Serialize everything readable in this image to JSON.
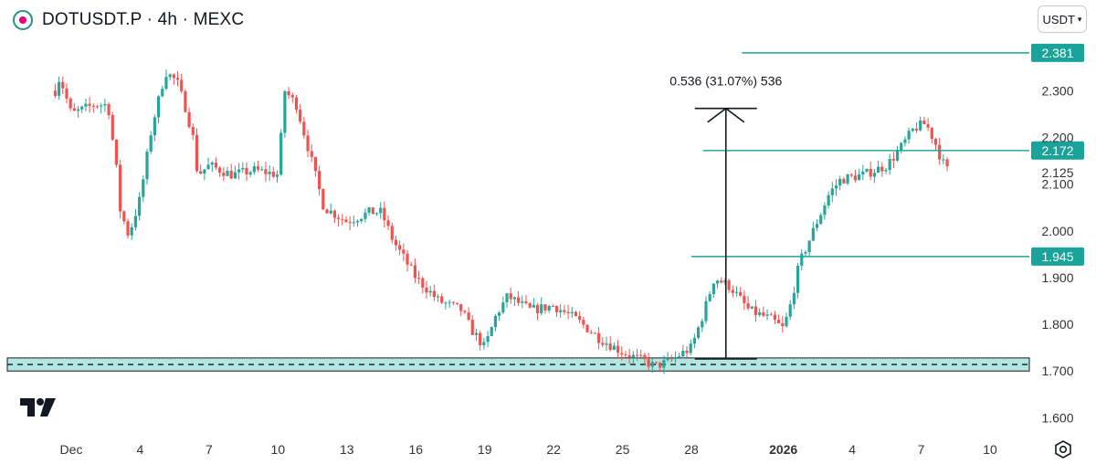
{
  "header": {
    "symbol_title": "DOTUSDT.P · 4h · MEXC",
    "currency_button": "USDT",
    "logo_icon": "polkadot-icon"
  },
  "colors": {
    "up": "#26a69a",
    "down": "#ef5350",
    "level": "#1aa39a",
    "zone": "#b2e6df",
    "text": "#131722",
    "axis_text": "#333333"
  },
  "measure": {
    "label": "0.536 (31.07%) 536"
  },
  "chart_data": {
    "type": "candlestick",
    "symbol": "DOTUSDT.P",
    "interval": "4h",
    "exchange": "MEXC",
    "ylim": [
      1.58,
      2.43
    ],
    "y_ticks": [
      "1.600",
      "1.700",
      "1.800",
      "1.900",
      "2.000",
      "2.100",
      "2.200",
      "2.300"
    ],
    "x_ticks": [
      {
        "label": "Dec",
        "day": 0
      },
      {
        "label": "4",
        "day": 3
      },
      {
        "label": "7",
        "day": 6
      },
      {
        "label": "10",
        "day": 9
      },
      {
        "label": "13",
        "day": 12
      },
      {
        "label": "16",
        "day": 15
      },
      {
        "label": "19",
        "day": 18
      },
      {
        "label": "22",
        "day": 21
      },
      {
        "label": "25",
        "day": 24
      },
      {
        "label": "28",
        "day": 27
      },
      {
        "label": "2026",
        "day": 31,
        "bold": true
      },
      {
        "label": "4",
        "day": 34
      },
      {
        "label": "7",
        "day": 37
      },
      {
        "label": "10",
        "day": 40
      }
    ],
    "price_levels": [
      {
        "value": 2.381,
        "label": "2.381",
        "from_day": 29.2
      },
      {
        "value": 2.172,
        "label": "2.172",
        "from_day": 27.5
      },
      {
        "value": 1.945,
        "label": "1.945",
        "from_day": 27.0
      }
    ],
    "current_price": {
      "value": 2.125,
      "label": "2.125"
    },
    "support_zone": {
      "top": 1.728,
      "bottom": 1.7,
      "mid": 1.714
    },
    "measure": {
      "from_day": 28.5,
      "from_price": 1.726,
      "to_price": 2.262,
      "change": 0.536,
      "percent": 31.07,
      "ticks": 536
    },
    "anchors": [
      [
        -0.7,
        2.3
      ],
      [
        -0.5,
        2.33
      ],
      [
        0.0,
        2.25
      ],
      [
        1.0,
        2.27
      ],
      [
        1.6,
        2.27
      ],
      [
        2.0,
        2.12
      ],
      [
        2.1,
        2.05
      ],
      [
        2.5,
        1.99
      ],
      [
        3.0,
        2.07
      ],
      [
        3.5,
        2.22
      ],
      [
        4.1,
        2.34
      ],
      [
        4.6,
        2.32
      ],
      [
        5.0,
        2.26
      ],
      [
        5.3,
        2.2
      ],
      [
        5.5,
        2.12
      ],
      [
        6.0,
        2.14
      ],
      [
        7.0,
        2.12
      ],
      [
        8.0,
        2.13
      ],
      [
        9.0,
        2.12
      ],
      [
        9.3,
        2.3
      ],
      [
        9.8,
        2.27
      ],
      [
        10.3,
        2.18
      ],
      [
        11.0,
        2.05
      ],
      [
        12.0,
        2.02
      ],
      [
        13.0,
        2.04
      ],
      [
        13.5,
        2.04
      ],
      [
        14.0,
        1.98
      ],
      [
        15.0,
        1.9
      ],
      [
        16.0,
        1.85
      ],
      [
        17.0,
        1.83
      ],
      [
        17.4,
        1.79
      ],
      [
        18.0,
        1.75
      ],
      [
        18.5,
        1.82
      ],
      [
        19.0,
        1.86
      ],
      [
        20.0,
        1.83
      ],
      [
        21.0,
        1.84
      ],
      [
        22.0,
        1.81
      ],
      [
        23.0,
        1.77
      ],
      [
        24.0,
        1.74
      ],
      [
        25.0,
        1.72
      ],
      [
        25.4,
        1.71
      ],
      [
        26.0,
        1.72
      ],
      [
        27.0,
        1.75
      ],
      [
        27.5,
        1.82
      ],
      [
        28.0,
        1.9
      ],
      [
        28.7,
        1.88
      ],
      [
        29.5,
        1.83
      ],
      [
        30.5,
        1.81
      ],
      [
        31.0,
        1.79
      ],
      [
        31.3,
        1.84
      ],
      [
        31.7,
        1.93
      ],
      [
        32.3,
        2.0
      ],
      [
        33.0,
        2.08
      ],
      [
        33.5,
        2.11
      ],
      [
        34.5,
        2.12
      ],
      [
        35.5,
        2.14
      ],
      [
        36.0,
        2.17
      ],
      [
        36.7,
        2.22
      ],
      [
        37.2,
        2.23
      ],
      [
        37.6,
        2.19
      ],
      [
        37.9,
        2.15
      ],
      [
        38.2,
        2.125
      ]
    ]
  }
}
